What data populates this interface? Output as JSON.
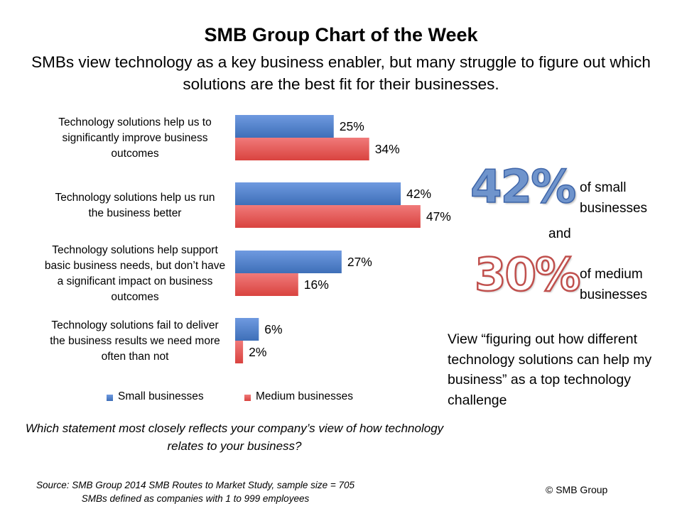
{
  "header": {
    "title": "SMB Group Chart of the Week",
    "subtitle": "SMBs view technology as a key business enabler, but many struggle to figure out which solutions are the best fit for their businesses."
  },
  "chart_data": {
    "type": "bar",
    "orientation": "horizontal",
    "categories": [
      "Technology solutions help us to significantly improve business outcomes",
      "Technology solutions help us run the business better",
      "Technology solutions help support basic business needs, but don’t have a significant impact on business outcomes",
      "Technology solutions fail to deliver the business results we need more often than not"
    ],
    "category_lines": [
      [
        "Technology solutions help us to",
        "significantly improve business",
        "outcomes"
      ],
      [
        "Technology solutions help us run",
        "the business better"
      ],
      [
        "Technology solutions help support",
        "basic business needs, but don’t have",
        "a significant impact on business",
        "outcomes"
      ],
      [
        "Technology solutions fail to deliver",
        "the business results we need more",
        "often than not"
      ]
    ],
    "series": [
      {
        "name": "Small businesses",
        "values": [
          25,
          42,
          27,
          6
        ],
        "labels": [
          "25%",
          "42%",
          "27%",
          "6%"
        ],
        "color": "#4f81bd"
      },
      {
        "name": "Medium businesses",
        "values": [
          34,
          47,
          16,
          2
        ],
        "labels": [
          "34%",
          "47%",
          "16%",
          "2%"
        ],
        "color": "#e45656"
      }
    ],
    "xlim": [
      0,
      50
    ],
    "grid": false,
    "legend_position": "bottom",
    "question": "Which statement most closely reflects your company’s view of how technology relates to your business?"
  },
  "callout": {
    "small_stat": "42%",
    "small_desc_1": "of small",
    "small_desc_2": "businesses",
    "and": "and",
    "medium_stat": "30%",
    "medium_desc_1": "of medium",
    "medium_desc_2": "businesses",
    "view_text": "View “figuring out how different technology solutions can help my business” as a top technology challenge",
    "small_color": "#6f94cc",
    "medium_color": "#c0504d"
  },
  "footer": {
    "source_line_1": "Source: SMB Group  2014 SMB Routes to Market Study, sample size = 705",
    "source_line_2": "SMBs defined as companies with 1 to 999 employees",
    "copyright": "© SMB Group"
  }
}
